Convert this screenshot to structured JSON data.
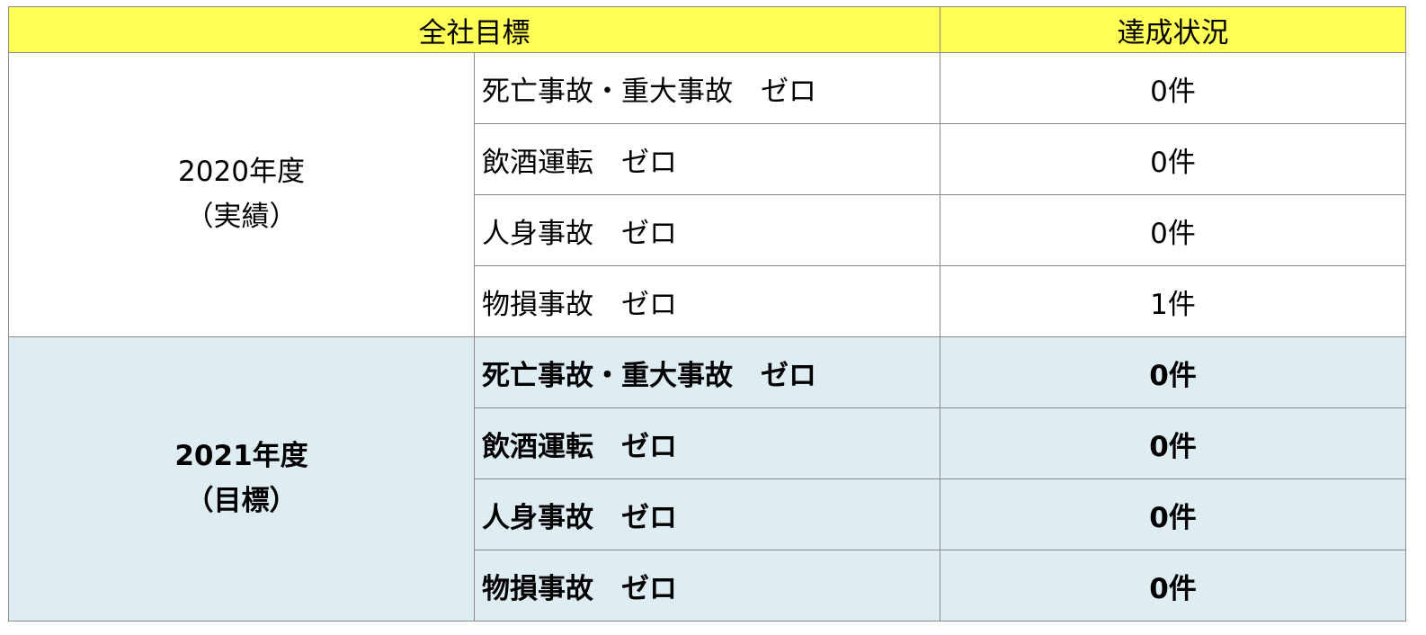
{
  "header": {
    "goal": "全社目標",
    "status": "達成状況"
  },
  "colors": {
    "header_bg": "#ffff55",
    "target_bg": "#deedf2"
  },
  "groups": [
    {
      "year": "2020年度",
      "kind": "（実績）",
      "rows": [
        {
          "goal": "死亡事故・重大事故　ゼロ",
          "status": "0件"
        },
        {
          "goal": "飲酒運転　ゼロ",
          "status": "0件"
        },
        {
          "goal": "人身事故　ゼロ",
          "status": "0件"
        },
        {
          "goal": "物損事故　ゼロ",
          "status": "1件"
        }
      ]
    },
    {
      "year": "2021年度",
      "kind": "（目標）",
      "rows": [
        {
          "goal": "死亡事故・重大事故　ゼロ",
          "status": "0件"
        },
        {
          "goal": "飲酒運転　ゼロ",
          "status": "0件"
        },
        {
          "goal": "人身事故　ゼロ",
          "status": "0件"
        },
        {
          "goal": "物損事故　ゼロ",
          "status": "0件"
        }
      ]
    }
  ]
}
